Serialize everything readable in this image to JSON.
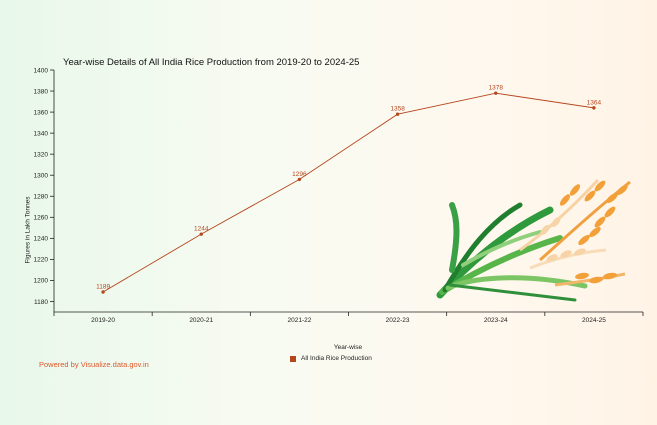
{
  "chart_data": {
    "type": "line",
    "title": "Year-wise Details of All India Rice Production from 2019-20 to 2024-25",
    "xlabel": "Year-wise",
    "ylabel": "Figures in Lakh Tonnes",
    "categories": [
      "2019-20",
      "2020-21",
      "2021-22",
      "2022-23",
      "2023-24",
      "2024-25"
    ],
    "series": [
      {
        "name": "All India Rice Production",
        "values": [
          1189,
          1244,
          1296,
          1358,
          1378,
          1364
        ],
        "color": "#b5471f"
      }
    ],
    "ylim": [
      1170,
      1400
    ],
    "yticks": [
      1180,
      1200,
      1220,
      1240,
      1260,
      1280,
      1300,
      1320,
      1340,
      1360,
      1380,
      1400
    ],
    "grid": false,
    "legend_position": "bottom"
  },
  "footer": {
    "credit": "Powered by Visualize.data.gov.in"
  },
  "decoration": {
    "image": "rice-plant-illustration"
  }
}
